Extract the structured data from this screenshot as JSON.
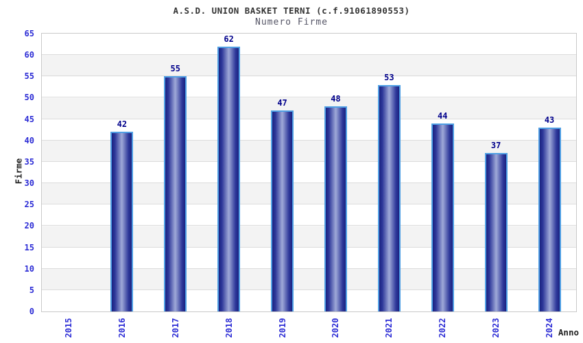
{
  "chart_data": {
    "type": "bar",
    "title": "A.S.D. UNION BASKET TERNI (c.f.91061890553)",
    "subtitle": "Numero Firme",
    "xlabel": "Anno",
    "ylabel": "Firme",
    "categories": [
      "2015",
      "2016",
      "2017",
      "2018",
      "2019",
      "2020",
      "2021",
      "2022",
      "2023",
      "2024"
    ],
    "values": [
      0,
      42,
      55,
      62,
      47,
      48,
      53,
      44,
      37,
      43
    ],
    "ylim": [
      0,
      65
    ],
    "ytick_step": 5,
    "grid": true,
    "legend": "none",
    "band_stripes": true,
    "colors": {
      "bar_edge_dark": "#1b2280",
      "bar_center_light": "#9fa9d8",
      "bar_border": "#4f9fe4",
      "tick_label": "#2b2bd5",
      "value_label": "#00008b",
      "band_gray": "#f3f3f3",
      "band_white": "#ffffff",
      "plot_border": "#c9c9c9",
      "title_color": "#333333",
      "subtitle_color": "#555566",
      "axis_title_color": "#222222"
    }
  }
}
